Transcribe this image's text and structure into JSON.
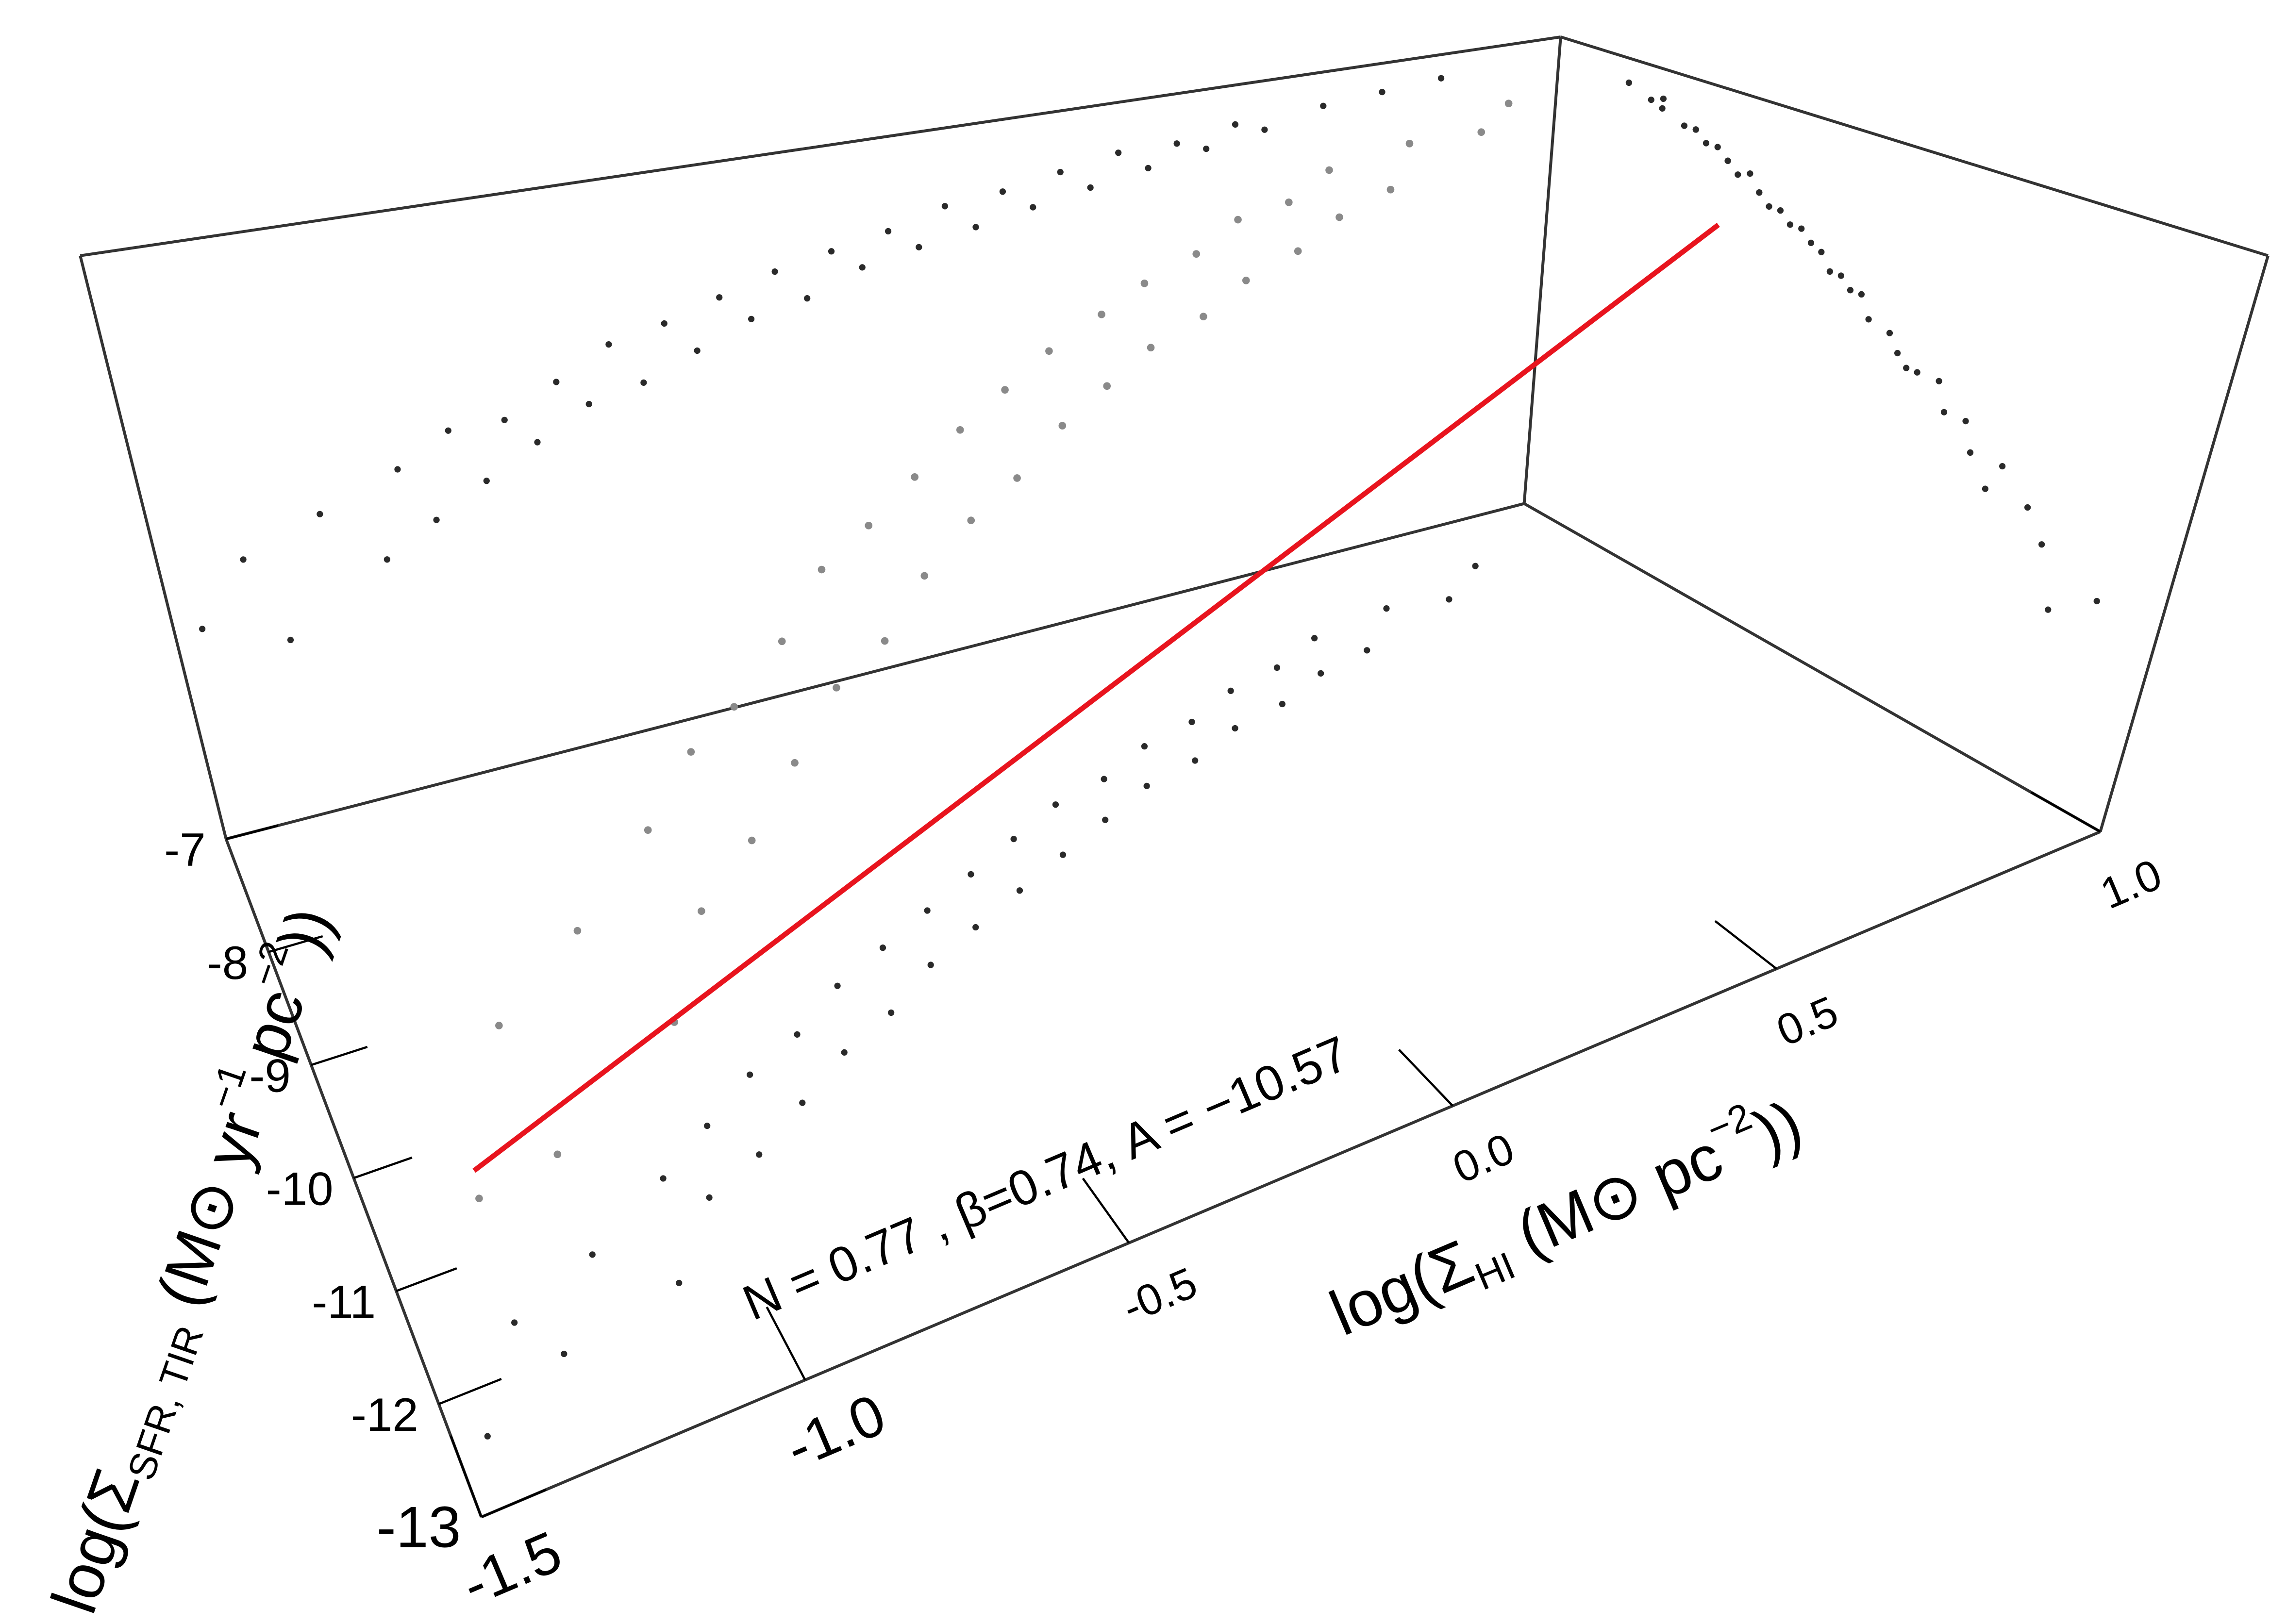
{
  "chart_data": {
    "type": "scatter3d",
    "x_label": [
      "log(Σ",
      "HI",
      " (M⊙ pc",
      "−2",
      "))"
    ],
    "y_label": [
      "log(Σ",
      "SFR, TIR",
      " (M⊙ yr",
      "−1",
      " pc",
      "−2",
      "))"
    ],
    "annotation": "N = 0.77 , β=0.74, A = −10.57",
    "xlim": [
      -1.5,
      1.0
    ],
    "xticks": [
      {
        "value": -1.5,
        "label": "-1.5"
      },
      {
        "value": -1,
        "label": "-1.0"
      },
      -0.5,
      {
        "value": 0,
        "label": "0.0"
      },
      0.5,
      {
        "value": 1,
        "label": "1.0"
      }
    ],
    "ylim": [
      -13,
      -7
    ],
    "yticks": [
      -13,
      -12,
      -11,
      -10,
      -9,
      -8,
      -7
    ],
    "zlim": [
      0,
      1
    ],
    "points": {
      "color": "#8a8a8a",
      "projection_color": "#2a2a2a",
      "x": [
        -1.45,
        -1.35,
        -1.3,
        -1.2,
        -1.1,
        -1.05,
        -1.0,
        -0.95,
        -0.9,
        -0.85,
        -0.8,
        -0.75,
        -0.7,
        -0.65,
        -0.6,
        -0.55,
        -0.5,
        -0.45,
        -0.4,
        -0.35,
        -0.3,
        -0.25,
        -0.2,
        -0.15,
        -0.1,
        -0.05,
        0.0,
        0.05,
        0.1,
        0.15,
        0.2,
        0.25,
        0.3,
        0.35,
        0.4,
        0.45,
        0.5,
        0.6,
        0.7,
        0.8
      ],
      "y": [
        -12.4,
        -11.6,
        -12.0,
        -11.3,
        -11.8,
        -10.9,
        -11.2,
        -10.6,
        -11.0,
        -10.3,
        -10.7,
        -10.1,
        -10.4,
        -9.8,
        -10.2,
        -9.6,
        -9.9,
        -9.4,
        -9.7,
        -9.2,
        -9.5,
        -9.0,
        -9.3,
        -8.8,
        -9.1,
        -8.7,
        -8.9,
        -8.5,
        -8.8,
        -8.4,
        -8.6,
        -8.2,
        -8.5,
        -8.1,
        -8.3,
        -7.9,
        -8.2,
        -7.8,
        -7.9,
        -7.6
      ],
      "z": [
        0.35,
        0.45,
        0.3,
        0.5,
        0.4,
        0.55,
        0.45,
        0.6,
        0.5,
        0.6,
        0.55,
        0.65,
        0.6,
        0.7,
        0.62,
        0.72,
        0.66,
        0.75,
        0.7,
        0.78,
        0.72,
        0.8,
        0.76,
        0.82,
        0.78,
        0.85,
        0.8,
        0.86,
        0.82,
        0.88,
        0.84,
        0.9,
        0.86,
        0.9,
        0.88,
        0.92,
        0.9,
        0.93,
        0.94,
        0.95
      ]
    },
    "fit_line": {
      "color": "#e8141e",
      "x": [
        -1.5,
        0.9
      ],
      "y": [
        -13,
        -9
      ],
      "z": [
        0.5,
        0.8
      ]
    }
  }
}
